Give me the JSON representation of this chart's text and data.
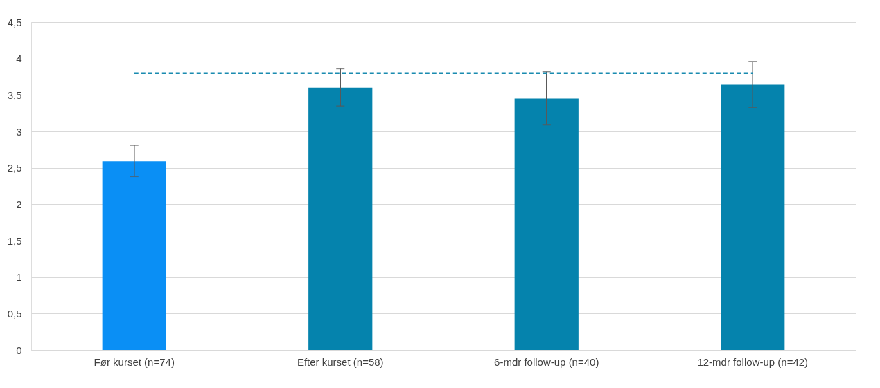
{
  "chart_data": {
    "type": "bar",
    "categories": [
      "Før kurset (n=74)",
      "Efter kurset (n=58)",
      "6-mdr follow-up (n=40)",
      "12-mdr follow-up (n=42)"
    ],
    "series": [
      {
        "values": [
          2.59,
          3.6,
          3.45,
          3.64
        ],
        "colors": [
          "#0a8ff5",
          "#0583ad",
          "#0583ad",
          "#0583ad"
        ],
        "errors": [
          [
            2.38,
            2.81
          ],
          [
            3.35,
            3.86
          ],
          [
            3.09,
            3.82
          ],
          [
            3.33,
            3.96
          ]
        ]
      },
      {
        "type": "line",
        "values": [
          3.8,
          3.8,
          3.8,
          3.8
        ],
        "color": "#1a8bb0",
        "line_style": "dashed",
        "marker": "none"
      }
    ],
    "ylim": [
      0,
      4.5
    ],
    "yticks": [
      0,
      {
        "value": 0.5,
        "label": "0,5"
      },
      1,
      {
        "value": 1.5,
        "label": "1,5"
      },
      2,
      {
        "value": 2.5,
        "label": "2,5"
      },
      3,
      {
        "value": 3.5,
        "label": "3,5"
      },
      4,
      {
        "value": 4.5,
        "label": "4,5"
      }
    ],
    "grid": "y"
  }
}
